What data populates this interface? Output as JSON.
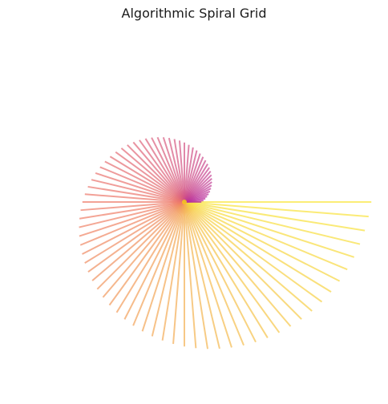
{
  "chart_data": {
    "type": "line",
    "title": "Algorithmic Spiral Grid",
    "xlabel": "",
    "ylabel": "",
    "axes_visible": false,
    "grid": false,
    "legend": "none",
    "shape": "radial spokes from a common center, arranged as a spiral grid",
    "spoke_count": 81,
    "start_angle_deg": 0,
    "angle_step_deg": 4.5,
    "radius_growth_per_spoke": 0.0125,
    "start_radius": 0.1,
    "max_radius": 1.1,
    "colormap": "plasma (purple to yellow, shorter spokes purple)",
    "line_alpha": 0.7,
    "colors": {
      "short": "#b72fa0",
      "mid": "#ee7a6a",
      "long": "#f9e63b",
      "center_glow": "#f5c51e"
    }
  }
}
